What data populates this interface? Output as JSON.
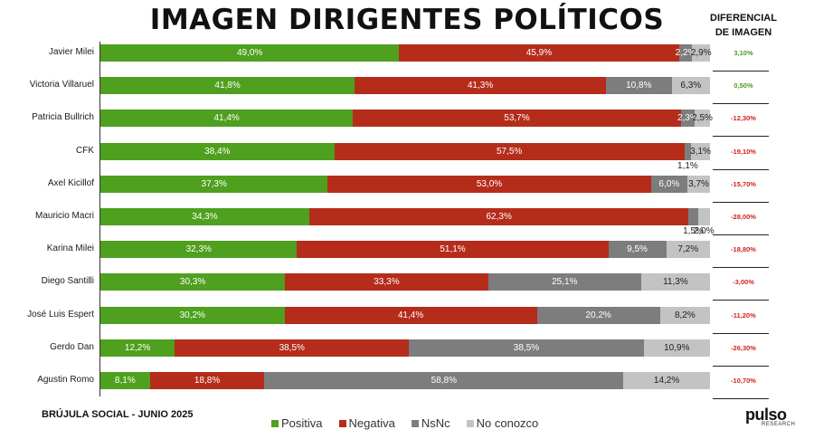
{
  "chart_data": {
    "type": "bar",
    "orientation": "horizontal-stacked-100",
    "title": "IMAGEN DIRIGENTES POLÍTICOS",
    "diff_header": "DIFERENCIAL DE IMAGEN",
    "legend": [
      "Positiva",
      "Negativa",
      "NsNc",
      "No conozco"
    ],
    "colors": {
      "Positiva": "#4ea01e",
      "Negativa": "#b52c1b",
      "NsNc": "#7d7d7d",
      "No conozco": "#c3c3c3"
    },
    "categories": [
      "Javier Milei",
      "Victoria Villaruel",
      "Patricia Bullrich",
      "CFK",
      "Axel Kicillof",
      "Mauricio Macri",
      "Karina Milei",
      "Diego Santilli",
      "José Luis Espert",
      "Gerdo Dan",
      "Agustin Romo"
    ],
    "series": [
      {
        "name": "Positiva",
        "values": [
          49.0,
          41.8,
          41.4,
          38.4,
          37.3,
          34.3,
          32.3,
          30.3,
          30.2,
          12.2,
          8.1
        ],
        "labels": [
          "49,0%",
          "41,8%",
          "41,4%",
          "38,4%",
          "37,3%",
          "34,3%",
          "32,3%",
          "30,3%",
          "30,2%",
          "12,2%",
          "8,1%"
        ]
      },
      {
        "name": "Negativa",
        "values": [
          45.9,
          41.3,
          53.7,
          57.5,
          53.0,
          62.3,
          51.1,
          33.3,
          41.4,
          38.5,
          18.8
        ],
        "labels": [
          "45,9%",
          "41,3%",
          "53,7%",
          "57,5%",
          "53,0%",
          "62,3%",
          "51,1%",
          "33,3%",
          "41,4%",
          "38,5%",
          "18,8%"
        ]
      },
      {
        "name": "NsNc",
        "values": [
          2.2,
          10.8,
          2.3,
          1.1,
          6.0,
          1.5,
          9.5,
          25.1,
          20.2,
          38.5,
          58.8
        ],
        "labels": [
          "2,2%",
          "10,8%",
          "2,3%",
          "1,1%",
          "6,0%",
          "1,5%",
          "9,5%",
          "25,1%",
          "20,2%",
          "38,5%",
          "58,8%"
        ]
      },
      {
        "name": "No conozco",
        "values": [
          2.9,
          6.3,
          2.5,
          3.1,
          3.7,
          2.0,
          7.2,
          11.3,
          8.2,
          10.9,
          14.2
        ],
        "labels": [
          "2,9%",
          "6,3%",
          "2,5%",
          "3,1%",
          "3,7%",
          "2,0%",
          "7,2%",
          "11,3%",
          "8,2%",
          "10,9%",
          "14,2%"
        ]
      }
    ],
    "diferencial": [
      "3,10%",
      "0,50%",
      "-12,30%",
      "-19,10%",
      "-15,70%",
      "-28,00%",
      "-18,80%",
      "-3,00%",
      "-11,20%",
      "-26,30%",
      "-10,70%"
    ],
    "xlim": [
      0,
      100
    ]
  },
  "footer": {
    "brand": "BRÚJULA SOCIAL - JUNIO 2025",
    "logo": "pulso",
    "logo_sub": "RESEARCH"
  }
}
